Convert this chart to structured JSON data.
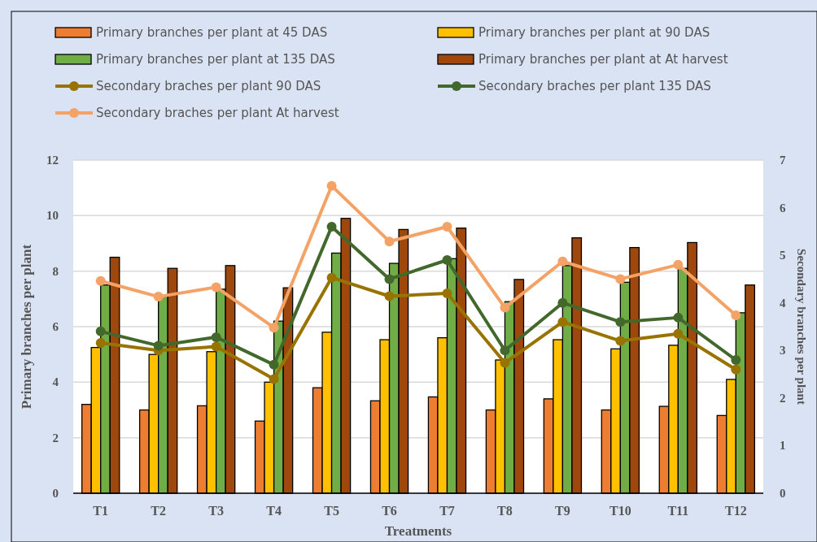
{
  "chart_data": {
    "type": "bar",
    "xlabel": "Treatments",
    "ylabel": "Primary branches per plant",
    "y2label": "Secondary branches per plant",
    "categories": [
      "T1",
      "T2",
      "T3",
      "T4",
      "T5",
      "T6",
      "T7",
      "T8",
      "T9",
      "T10",
      "T11",
      "T12"
    ],
    "series": [
      {
        "name": "Primary branches per plant at  45 DAS",
        "color": "#ed7d31",
        "values": [
          3.2,
          3.0,
          3.15,
          2.6,
          3.8,
          3.33,
          3.47,
          3.0,
          3.4,
          3.0,
          3.13,
          2.8
        ]
      },
      {
        "name": "Primary branches per plant at  90 DAS",
        "color": "#ffc000",
        "values": [
          5.25,
          5.0,
          5.1,
          4.0,
          5.8,
          5.53,
          5.6,
          4.8,
          5.53,
          5.2,
          5.33,
          4.1
        ]
      },
      {
        "name": "Primary branches per plant at  135 DAS",
        "color": "#70ad47",
        "values": [
          7.5,
          7.1,
          7.35,
          6.2,
          8.65,
          8.28,
          8.45,
          6.9,
          8.2,
          7.6,
          8.1,
          6.5
        ]
      },
      {
        "name": "Primary branches per plant at  At harvest",
        "color": "#9e480e",
        "values": [
          8.5,
          8.1,
          8.2,
          7.4,
          9.9,
          9.5,
          9.55,
          7.7,
          9.2,
          8.85,
          9.03,
          7.5
        ]
      },
      {
        "name": "Secondary braches per plant 90 DAS",
        "type": "line",
        "axis": "y2",
        "color": "#997300",
        "values": [
          3.16,
          3.0,
          3.08,
          2.4,
          4.53,
          4.14,
          4.2,
          2.74,
          3.6,
          3.2,
          3.35,
          2.6
        ]
      },
      {
        "name": "Secondary braches per plant 135 DAS",
        "type": "line",
        "axis": "y2",
        "color": "#43682b",
        "values": [
          3.4,
          3.1,
          3.28,
          2.7,
          5.6,
          4.5,
          4.9,
          3.0,
          4.0,
          3.6,
          3.69,
          2.8
        ]
      },
      {
        "name": "Secondary braches per plant At harvest",
        "type": "line",
        "axis": "y2",
        "color": "#f4a266",
        "values": [
          4.46,
          4.13,
          4.33,
          3.48,
          6.46,
          5.29,
          5.6,
          3.9,
          4.87,
          4.5,
          4.8,
          3.74
        ]
      }
    ],
    "ylim": [
      0,
      12
    ],
    "yticks": [
      0,
      2,
      4,
      6,
      8,
      10,
      12
    ],
    "y2lim": [
      0,
      7
    ],
    "y2ticks": [
      0,
      1,
      2,
      3,
      4,
      5,
      6,
      7
    ],
    "grid": "y",
    "legend": "top",
    "marker": "circle"
  }
}
